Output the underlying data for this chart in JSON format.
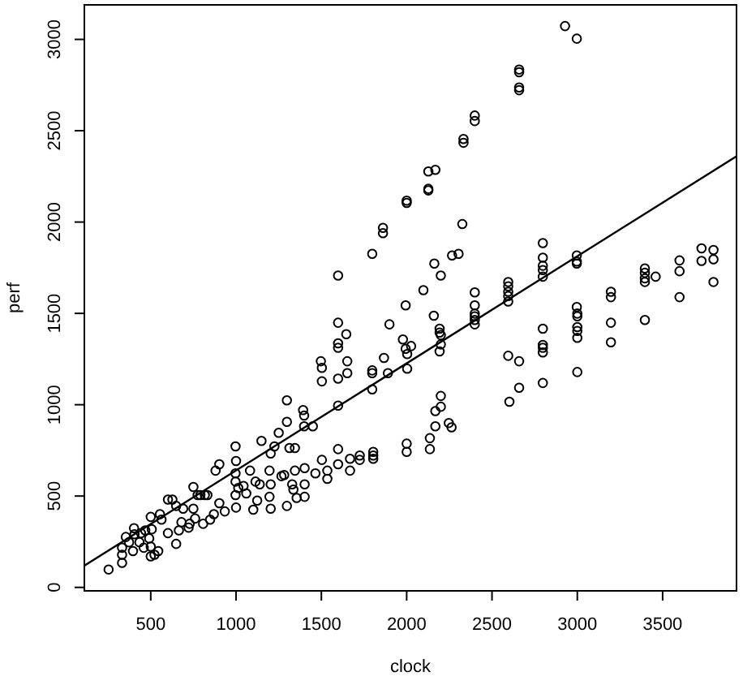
{
  "chart_data": {
    "type": "scatter",
    "xlabel": "clock",
    "ylabel": "perf",
    "xlim": [
      111,
      3933
    ],
    "ylim": [
      -19,
      3189
    ],
    "xticks": [
      500,
      1000,
      1500,
      2000,
      2500,
      3000,
      3500
    ],
    "yticks": [
      0,
      500,
      1000,
      1500,
      2000,
      2500,
      3000
    ],
    "grid": false,
    "marker": "circle",
    "series": [
      {
        "color": "#000000",
        "x": [
          253,
          332,
          332,
          332,
          354,
          373,
          396,
          402,
          405,
          434,
          443,
          459,
          468,
          491,
          500,
          500,
          506,
          522,
          544,
          500,
          554,
          563,
          601,
          601,
          627,
          649,
          649,
          665,
          680,
          690,
          722,
          728,
          750,
          750,
          760,
          775,
          791,
          817,
          832,
          807,
          848,
          870,
          880,
          902,
          902,
          934,
          997,
          997,
          1000,
          997,
          997,
          1000,
          1013,
          1044,
          1060,
          1082,
          1101,
          1114,
          1124,
          1139,
          1149,
          1196,
          1203,
          1196,
          1203,
          1203,
          1225,
          1250,
          1266,
          1282,
          1298,
          1298,
          1298,
          1313,
          1329,
          1345,
          1336,
          1345,
          1355,
          1393,
          1399,
          1399,
          1402,
          1402,
          1402,
          1450,
          1465,
          1497,
          1503,
          1503,
          1503,
          1535,
          1535,
          1598,
          1598,
          1598,
          1598,
          1598,
          1598,
          1598,
          1646,
          1652,
          1652,
          1668,
          1668,
          1725,
          1725,
          1798,
          1798,
          1798,
          1804,
          1804,
          1804,
          1867,
          1890,
          1899,
          1978,
          1994,
          2003,
          2026,
          2003,
          2000,
          2000,
          2136,
          2136,
          2159,
          2168,
          2168,
          2200,
          2200,
          2193,
          2193,
          2200,
          2193,
          2200,
          2247,
          2263,
          2399,
          2399,
          2399,
          2399,
          2595,
          2659,
          2659,
          2602,
          2798,
          2798,
          2798,
          2798,
          2798,
          3000,
          3000,
          3000,
          3000,
          3000,
          3000,
          3197,
          3197,
          3396,
          2928,
          2997,
          2659,
          2659,
          2659,
          2659,
          2399,
          2399,
          2333,
          2333,
          2127,
          2168,
          2127,
          2127,
          2000,
          2000,
          2326,
          2162,
          2200,
          2266,
          2304,
          2098,
          2399,
          2399,
          2798,
          2798,
          2798,
          2798,
          2798,
          2595,
          2595,
          2595,
          2595,
          2595,
          2997,
          2997,
          2997,
          3197,
          3197,
          3396,
          3396,
          3396,
          3396,
          3459,
          3599,
          3599,
          3599,
          3728,
          3798,
          3728,
          3798,
          3798,
          1994,
          2997,
          1598,
          1798,
          1861,
          1861
        ],
        "values": [
          98,
          134,
          179,
          217,
          276,
          247,
          199,
          324,
          291,
          247,
          297,
          217,
          312,
          268,
          170,
          223,
          318,
          179,
          199,
          386,
          401,
          371,
          297,
          481,
          481,
          238,
          446,
          312,
          357,
          431,
          327,
          348,
          550,
          431,
          377,
          505,
          505,
          505,
          505,
          348,
          371,
          401,
          639,
          674,
          461,
          416,
          772,
          624,
          692,
          579,
          505,
          437,
          544,
          555,
          514,
          639,
          425,
          579,
          475,
          564,
          802,
          639,
          564,
          496,
          431,
          733,
          772,
          846,
          609,
          615,
          1024,
          906,
          446,
          763,
          564,
          763,
          535,
          639,
          490,
          971,
          941,
          882,
          564,
          496,
          653,
          882,
          624,
          1238,
          1202,
          1128,
          698,
          639,
          594,
          1449,
          1336,
          1312,
          1143,
          757,
          995,
          674,
          1386,
          1238,
          1173,
          639,
          704,
          722,
          698,
          1188,
          1173,
          1084,
          742,
          722,
          704,
          1256,
          1173,
          1440,
          1357,
          1306,
          1277,
          1321,
          1197,
          787,
          742,
          817,
          757,
          1487,
          882,
          965,
          1048,
          989,
          1395,
          1416,
          1381,
          1292,
          1330,
          900,
          876,
          1499,
          1484,
          1464,
          1440,
          1268,
          1238,
          1093,
          1016,
          1416,
          1327,
          1312,
          1286,
          1119,
          1499,
          1484,
          1425,
          1404,
          1366,
          1179,
          1449,
          1342,
          1464,
          3073,
          3004,
          2835,
          2820,
          2737,
          2722,
          2583,
          2553,
          2455,
          2434,
          2277,
          2286,
          2182,
          2173,
          2117,
          2105,
          1989,
          1773,
          1707,
          1817,
          1826,
          1627,
          1615,
          1544,
          1885,
          1805,
          1761,
          1737,
          1701,
          1672,
          1648,
          1618,
          1595,
          1565,
          1817,
          1784,
          1773,
          1618,
          1589,
          1746,
          1722,
          1692,
          1672,
          1701,
          1790,
          1731,
          1589,
          1856,
          1847,
          1787,
          1796,
          1672,
          1544,
          1535,
          1707,
          1826,
          1968,
          1939
        ]
      },
      {
        "type": "line",
        "marker": "none",
        "color": "#000000",
        "x": [
          111,
          3933
        ],
        "values": [
          119,
          2360
        ]
      }
    ]
  }
}
